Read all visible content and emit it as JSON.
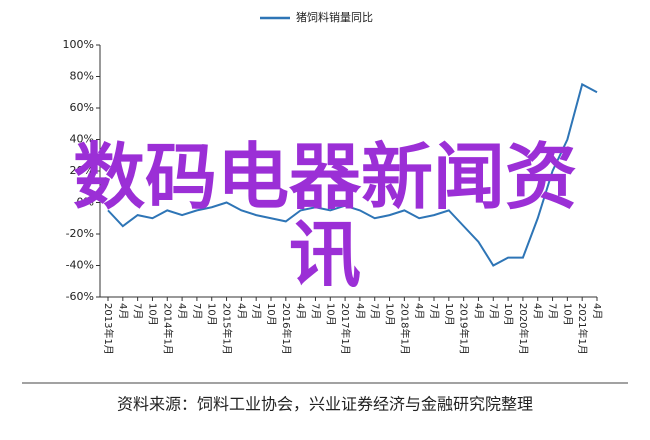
{
  "chart_data": {
    "type": "line",
    "title": "猪饲料销量同比",
    "categories": [
      "2013年1月",
      "4月",
      "7月",
      "10月",
      "2014年1月",
      "4月",
      "7月",
      "10月",
      "2015年1月",
      "4月",
      "7月",
      "10月",
      "2016年1月",
      "4月",
      "7月",
      "10月",
      "2017年1月",
      "4月",
      "7月",
      "10月",
      "2018年1月",
      "4月",
      "7月",
      "10月",
      "2019年1月",
      "4月",
      "7月",
      "10月",
      "2020年1月",
      "4月",
      "7月",
      "10月",
      "2021年1月",
      "4月"
    ],
    "series": [
      {
        "name": "猪饲料销量同比",
        "color": "#2e75b6",
        "values": [
          -5,
          -15,
          -8,
          -10,
          -5,
          -8,
          -5,
          -3,
          0,
          -5,
          -8,
          -10,
          -12,
          -5,
          -3,
          -5,
          -2,
          -5,
          -10,
          -8,
          -5,
          -10,
          -8,
          -5,
          -15,
          -25,
          -40,
          -35,
          -35,
          -10,
          20,
          40,
          75,
          70
        ]
      }
    ],
    "ylim": [
      -60,
      100
    ],
    "yticks": [
      {
        "value": -60,
        "label": "-60%"
      },
      {
        "value": -40,
        "label": "-40%"
      },
      {
        "value": -20,
        "label": "-20%"
      },
      {
        "value": 0,
        "label": "0%"
      },
      {
        "value": 20,
        "label": "20%"
      },
      {
        "value": 40,
        "label": "40%"
      },
      {
        "value": 60,
        "label": "60%"
      },
      {
        "value": 80,
        "label": "80%"
      },
      {
        "value": 100,
        "label": "100%"
      }
    ],
    "annotation": "数码电器新闻资讯",
    "source": "资料来源：饲料工业协会，兴业证券经济与金融研究院整理"
  }
}
